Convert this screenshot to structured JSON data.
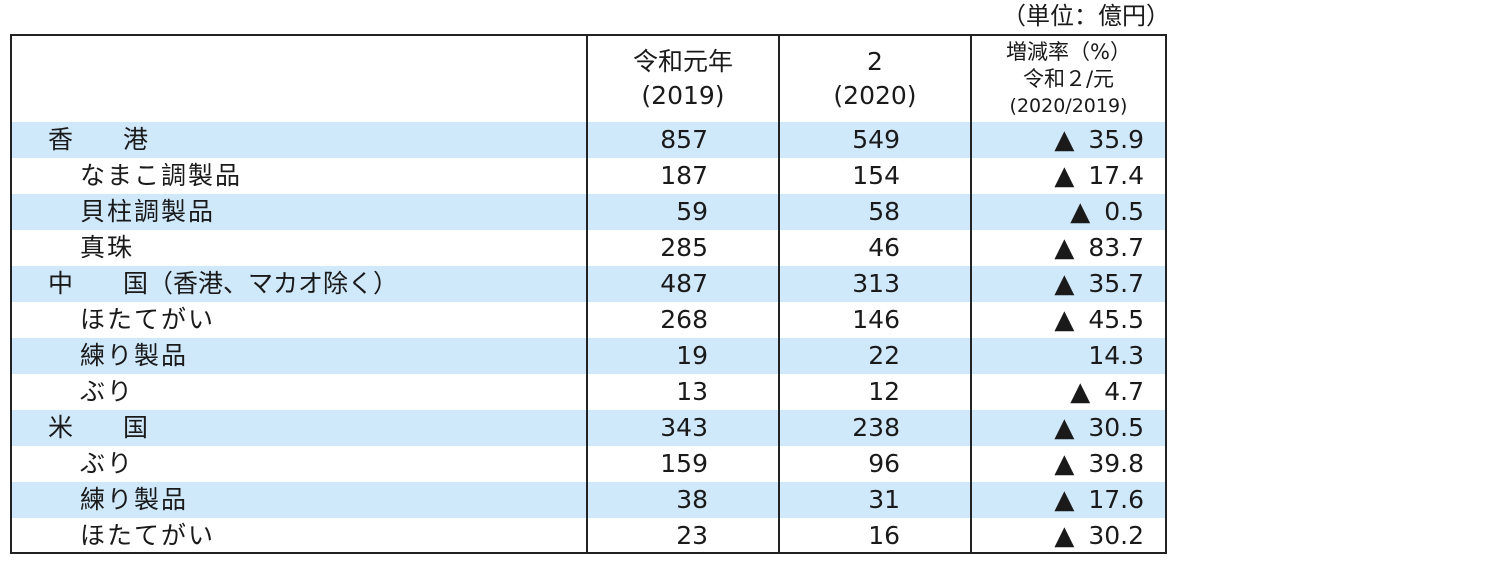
{
  "unit_note": "（単位：億円）",
  "header": {
    "col_item": "",
    "col_2019_line1": "令和元年",
    "col_2019_line2": "(2019)",
    "col_2020_line1": "2",
    "col_2020_line2": "(2020)",
    "col_rate_line1": "増減率（%）",
    "col_rate_line2": "令和２/元",
    "col_rate_line3": "(2020/2019)"
  },
  "rows": [
    {
      "name": "香　　港",
      "v2019": "857",
      "v2020": "549",
      "mark": "▲",
      "rate": "35.9"
    },
    {
      "name": "なまこ調製品",
      "v2019": "187",
      "v2020": "154",
      "mark": "▲",
      "rate": "17.4"
    },
    {
      "name": "貝柱調製品",
      "v2019": "59",
      "v2020": "58",
      "mark": "▲",
      "rate": "0.5"
    },
    {
      "name": "真珠",
      "v2019": "285",
      "v2020": "46",
      "mark": "▲",
      "rate": "83.7"
    },
    {
      "name": "中　　国（香港、マカオ除く）",
      "v2019": "487",
      "v2020": "313",
      "mark": "▲",
      "rate": "35.7"
    },
    {
      "name": "ほたてがい",
      "v2019": "268",
      "v2020": "146",
      "mark": "▲",
      "rate": "45.5"
    },
    {
      "name": "練り製品",
      "v2019": "19",
      "v2020": "22",
      "mark": "",
      "rate": "14.3"
    },
    {
      "name": "ぶり",
      "v2019": "13",
      "v2020": "12",
      "mark": "▲",
      "rate": "4.7"
    },
    {
      "name": "米　　国",
      "v2019": "343",
      "v2020": "238",
      "mark": "▲",
      "rate": "30.5"
    },
    {
      "name": "ぶり",
      "v2019": "159",
      "v2020": "96",
      "mark": "▲",
      "rate": "39.8"
    },
    {
      "name": "練り製品",
      "v2019": "38",
      "v2020": "31",
      "mark": "▲",
      "rate": "17.6"
    },
    {
      "name": "ほたてがい",
      "v2019": "23",
      "v2020": "16",
      "mark": "▲",
      "rate": "30.2"
    }
  ],
  "colors": {
    "row_shade": "#cfe8fa",
    "border": "#222222"
  }
}
